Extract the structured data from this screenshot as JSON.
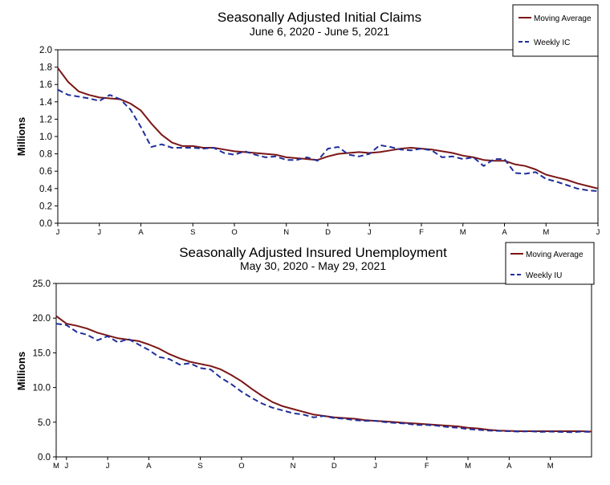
{
  "chart_data": [
    {
      "type": "line",
      "title": "Seasonally Adjusted Initial Claims",
      "subtitle": "June 6, 2020 - June 5, 2021",
      "ylabel": "Millions",
      "xlabel": "",
      "ylim": [
        0,
        2.0
      ],
      "yticks": [
        "0.0",
        "0.2",
        "0.4",
        "0.6",
        "0.8",
        "1.0",
        "1.2",
        "1.4",
        "1.6",
        "1.8",
        "2.0"
      ],
      "x_month_labels": [
        {
          "label": "J",
          "week": 0
        },
        {
          "label": "J",
          "week": 4
        },
        {
          "label": "A",
          "week": 8
        },
        {
          "label": "S",
          "week": 13
        },
        {
          "label": "O",
          "week": 17
        },
        {
          "label": "N",
          "week": 22
        },
        {
          "label": "D",
          "week": 26
        },
        {
          "label": "J",
          "week": 30
        },
        {
          "label": "F",
          "week": 35
        },
        {
          "label": "M",
          "week": 39
        },
        {
          "label": "A",
          "week": 43
        },
        {
          "label": "M",
          "week": 47
        },
        {
          "label": "J",
          "week": 52
        }
      ],
      "grid": false,
      "legend_position": "top-right",
      "series": [
        {
          "name": "Moving Average",
          "style": "solid",
          "color": "#7b1616",
          "values": [
            1.79,
            1.63,
            1.52,
            1.48,
            1.45,
            1.44,
            1.43,
            1.38,
            1.3,
            1.15,
            1.02,
            0.93,
            0.89,
            0.89,
            0.87,
            0.87,
            0.85,
            0.83,
            0.82,
            0.81,
            0.8,
            0.79,
            0.76,
            0.75,
            0.74,
            0.73,
            0.77,
            0.8,
            0.81,
            0.82,
            0.81,
            0.82,
            0.84,
            0.86,
            0.87,
            0.86,
            0.85,
            0.83,
            0.81,
            0.78,
            0.76,
            0.73,
            0.72,
            0.72,
            0.68,
            0.66,
            0.62,
            0.56,
            0.53,
            0.5,
            0.46,
            0.43,
            0.4
          ]
        },
        {
          "name": "Weekly IC",
          "style": "dashed",
          "color": "#1f2f9a",
          "values": [
            1.54,
            1.48,
            1.46,
            1.44,
            1.41,
            1.48,
            1.43,
            1.31,
            1.11,
            0.88,
            0.91,
            0.87,
            0.87,
            0.87,
            0.86,
            0.87,
            0.81,
            0.79,
            0.83,
            0.79,
            0.76,
            0.77,
            0.73,
            0.73,
            0.76,
            0.72,
            0.86,
            0.88,
            0.79,
            0.77,
            0.8,
            0.9,
            0.88,
            0.85,
            0.84,
            0.86,
            0.84,
            0.76,
            0.77,
            0.74,
            0.76,
            0.66,
            0.74,
            0.74,
            0.58,
            0.57,
            0.59,
            0.51,
            0.48,
            0.44,
            0.4,
            0.38,
            0.37
          ]
        }
      ]
    },
    {
      "type": "line",
      "title": "Seasonally Adjusted Insured Unemployment",
      "subtitle": "May 30, 2020 - May 29, 2021",
      "ylabel": "Millions",
      "xlabel": "",
      "ylim": [
        0,
        25.0
      ],
      "yticks": [
        "0.0",
        "5.0",
        "10.0",
        "15.0",
        "20.0",
        "25.0"
      ],
      "x_month_labels": [
        {
          "label": "M",
          "week": 0
        },
        {
          "label": "J",
          "week": 1
        },
        {
          "label": "J",
          "week": 5
        },
        {
          "label": "A",
          "week": 9
        },
        {
          "label": "S",
          "week": 14
        },
        {
          "label": "O",
          "week": 18
        },
        {
          "label": "N",
          "week": 23
        },
        {
          "label": "D",
          "week": 27
        },
        {
          "label": "J",
          "week": 31
        },
        {
          "label": "F",
          "week": 36
        },
        {
          "label": "M",
          "week": 40
        },
        {
          "label": "A",
          "week": 44
        },
        {
          "label": "M",
          "week": 48
        }
      ],
      "grid": false,
      "legend_position": "top-right",
      "series": [
        {
          "name": "Moving Average",
          "style": "solid",
          "color": "#7b1616",
          "values": [
            20.3,
            19.2,
            18.9,
            18.5,
            17.9,
            17.5,
            17.1,
            16.9,
            16.7,
            16.2,
            15.6,
            14.8,
            14.2,
            13.7,
            13.4,
            13.1,
            12.6,
            11.8,
            10.9,
            9.8,
            8.8,
            7.9,
            7.3,
            6.9,
            6.5,
            6.1,
            5.9,
            5.7,
            5.6,
            5.5,
            5.3,
            5.2,
            5.1,
            5.0,
            4.9,
            4.8,
            4.7,
            4.6,
            4.5,
            4.4,
            4.2,
            4.1,
            3.9,
            3.8,
            3.75,
            3.7,
            3.7,
            3.7,
            3.7,
            3.7,
            3.7,
            3.7,
            3.65
          ]
        },
        {
          "name": "Weekly IU",
          "style": "dashed",
          "color": "#1f2f9a",
          "values": [
            19.2,
            19.0,
            18.0,
            17.6,
            16.8,
            17.4,
            16.5,
            17.0,
            16.2,
            15.4,
            14.4,
            14.1,
            13.3,
            13.5,
            12.8,
            12.6,
            11.4,
            10.5,
            9.4,
            8.5,
            7.7,
            7.1,
            6.7,
            6.3,
            6.1,
            5.7,
            5.9,
            5.6,
            5.5,
            5.3,
            5.2,
            5.2,
            5.0,
            4.9,
            4.8,
            4.6,
            4.6,
            4.5,
            4.3,
            4.2,
            4.0,
            3.9,
            3.8,
            3.75,
            3.7,
            3.65,
            3.7,
            3.6,
            3.65,
            3.6,
            3.55,
            3.65,
            3.6
          ]
        }
      ]
    }
  ]
}
